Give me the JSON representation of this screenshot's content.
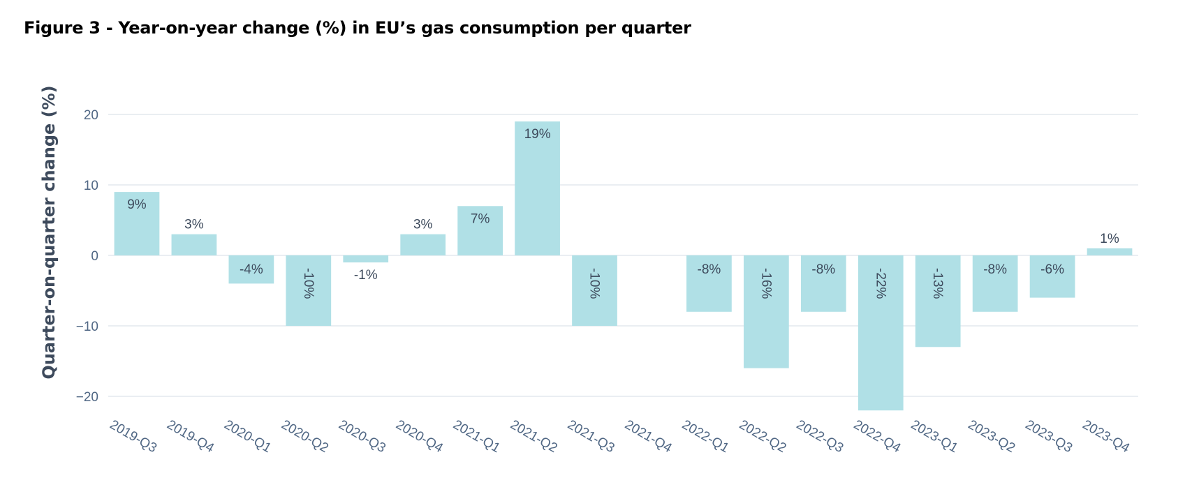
{
  "title": "Figure 3 - Year-on-year change (%) in EU’s gas consumption per quarter",
  "colors": {
    "bar": "#b0e0e6",
    "grid": "#dde3ea",
    "tick": "#506784",
    "label": "#3d4a5c"
  },
  "chart_data": {
    "type": "bar",
    "title": "Figure 3 - Year-on-year change (%) in EU’s gas consumption per quarter",
    "xlabel": "",
    "ylabel": "Quarter-on-quarter change (%)",
    "ylim": [
      -22,
      21
    ],
    "yticks": [
      20,
      10,
      0,
      -10,
      -20
    ],
    "ytick_labels": [
      "20",
      "10",
      "0",
      "−10",
      "−20"
    ],
    "grid": true,
    "legend": "none",
    "categories": [
      "2019-Q3",
      "2019-Q4",
      "2020-Q1",
      "2020-Q2",
      "2020-Q3",
      "2020-Q4",
      "2021-Q1",
      "2021-Q2",
      "2021-Q3",
      "2021-Q4",
      "2022-Q1",
      "2022-Q2",
      "2022-Q3",
      "2022-Q4",
      "2023-Q1",
      "2023-Q2",
      "2023-Q3",
      "2023-Q4"
    ],
    "values": [
      9,
      3,
      -4,
      -10,
      -1,
      3,
      7,
      19,
      -10,
      0,
      -8,
      -16,
      -8,
      -22,
      -13,
      -8,
      -6,
      1
    ],
    "labels": [
      "9%",
      "3%",
      "-4%",
      "-10%",
      "-1%",
      "3%",
      "7%",
      "19%",
      "-10%",
      "",
      "-8%",
      "-16%",
      "-8%",
      "-22%",
      "-13%",
      "-8%",
      "-6%",
      "1%"
    ],
    "label_rotated": [
      false,
      false,
      false,
      true,
      false,
      false,
      false,
      false,
      true,
      false,
      false,
      true,
      false,
      true,
      true,
      false,
      false,
      false
    ]
  }
}
